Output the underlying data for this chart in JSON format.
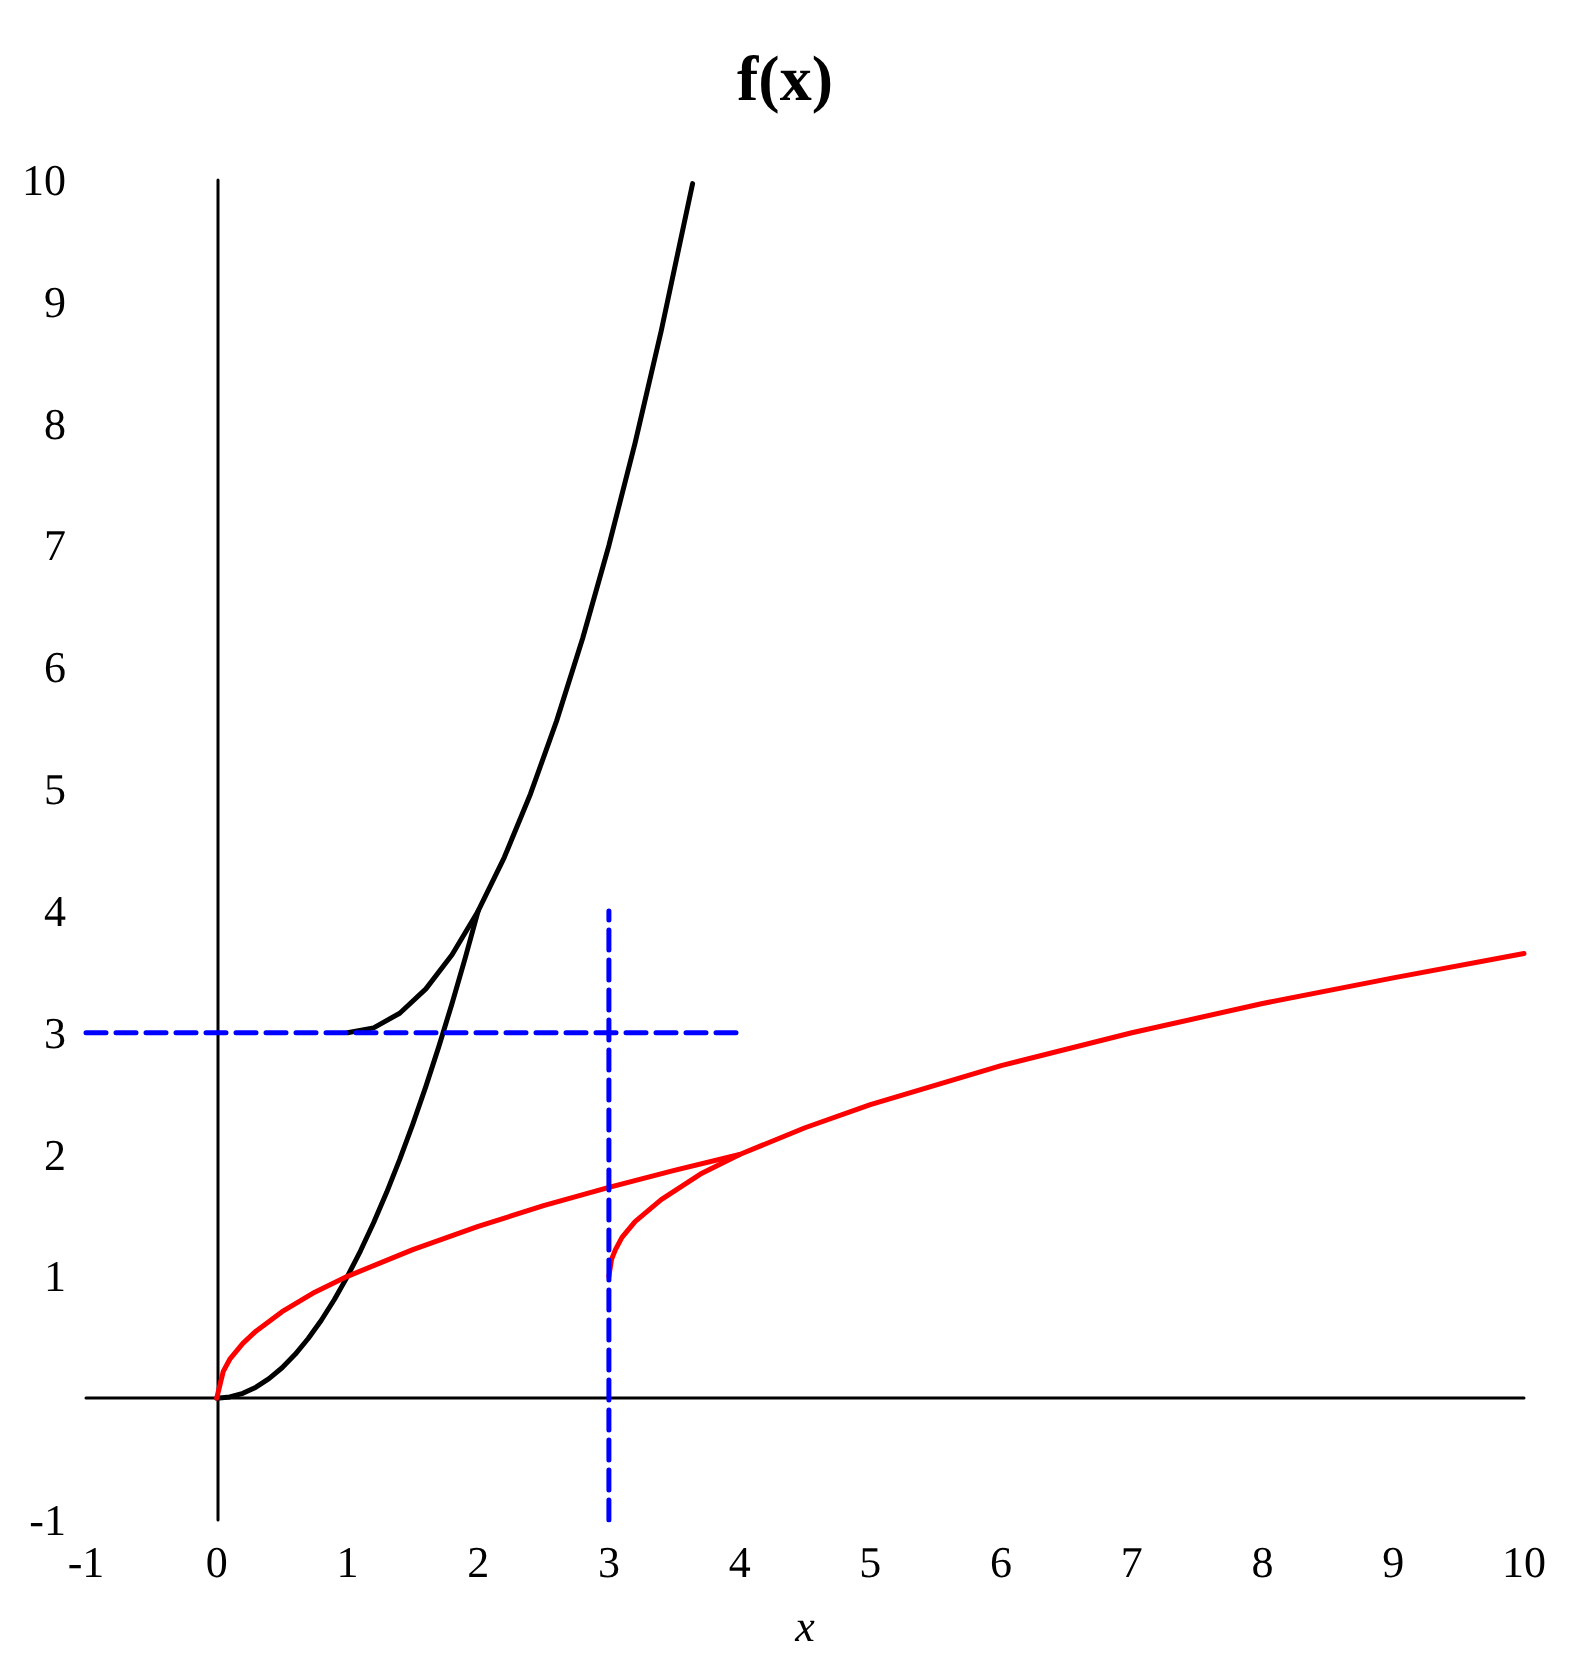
{
  "chart_data": {
    "type": "line",
    "title": "f(x)",
    "xlabel": "x",
    "xlim": [
      -1,
      10
    ],
    "ylim": [
      -1,
      10
    ],
    "xticks": [
      -1,
      0,
      1,
      2,
      3,
      4,
      5,
      6,
      7,
      8,
      9,
      10
    ],
    "yticks": [
      -1,
      1,
      2,
      3,
      4,
      5,
      6,
      7,
      8,
      9,
      10
    ],
    "series": [
      {
        "color": "#000000",
        "line_style": "solid",
        "x": [
          0,
          0.1,
          0.2,
          0.3,
          0.4,
          0.5,
          0.6,
          0.7,
          0.8,
          0.9,
          1,
          1.1,
          1.2,
          1.3,
          1.4,
          1.5,
          1.6,
          1.7,
          1.8,
          1.9,
          2
        ],
        "values": [
          0,
          0.01,
          0.04,
          0.09,
          0.16,
          0.25,
          0.36,
          0.49,
          0.64,
          0.81,
          1,
          1.21,
          1.44,
          1.69,
          1.96,
          2.25,
          2.56,
          2.89,
          3.24,
          3.61,
          4
        ]
      },
      {
        "color": "#000000",
        "line_style": "solid",
        "x": [
          1,
          1.2,
          1.4,
          1.6,
          1.8,
          2,
          2.2,
          2.4,
          2.6,
          2.8,
          3,
          3.2,
          3.4,
          3.64
        ],
        "values": [
          3,
          3.04,
          3.16,
          3.36,
          3.64,
          4,
          4.44,
          4.96,
          5.56,
          6.24,
          7,
          7.84,
          8.76,
          9.97
        ]
      },
      {
        "color": "#ff0000",
        "line_style": "solid",
        "x": [
          0,
          0.05,
          0.1,
          0.2,
          0.3,
          0.5,
          0.75,
          1,
          1.5,
          2,
          2.5,
          3,
          3.5,
          4
        ],
        "values": [
          0,
          0.22,
          0.32,
          0.45,
          0.55,
          0.71,
          0.87,
          1,
          1.22,
          1.41,
          1.58,
          1.73,
          1.87,
          2
        ]
      },
      {
        "color": "#ff0000",
        "line_style": "solid",
        "x": [
          3,
          3.02,
          3.05,
          3.1,
          3.2,
          3.4,
          3.7,
          4,
          4.5,
          5,
          6,
          7,
          8,
          9,
          10
        ],
        "values": [
          1,
          1.14,
          1.22,
          1.32,
          1.45,
          1.63,
          1.84,
          2,
          2.22,
          2.41,
          2.73,
          3,
          3.24,
          3.45,
          3.65
        ]
      },
      {
        "color": "#0000ff",
        "line_style": "dashed",
        "x": [
          -1,
          4
        ],
        "values": [
          3,
          3
        ]
      },
      {
        "color": "#0000ff",
        "line_style": "dashed",
        "x": [
          3,
          3
        ],
        "values": [
          -1,
          4
        ]
      }
    ]
  }
}
